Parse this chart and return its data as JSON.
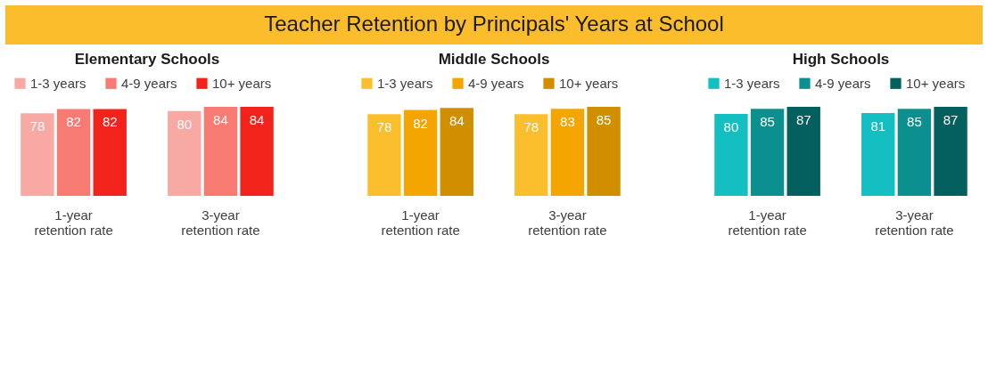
{
  "chart_data": [
    {
      "type": "other",
      "title": "Teacher Retention by Principals' Years at School"
    },
    {
      "type": "bar",
      "title": "Elementary Schools",
      "categories": [
        "1-year retention rate",
        "3-year retention rate"
      ],
      "legend": "top",
      "data_labels": true,
      "series": [
        {
          "name": "1-3 years",
          "color": "#f9a9a4",
          "values": [
            78,
            80
          ]
        },
        {
          "name": "4-9 years",
          "color": "#f77b72",
          "values": [
            82,
            84
          ]
        },
        {
          "name": "10+ years",
          "color": "#f2231b",
          "values": [
            82,
            84
          ]
        }
      ]
    },
    {
      "type": "bar",
      "title": "Middle Schools",
      "categories": [
        "1-year retention rate",
        "3-year retention rate"
      ],
      "legend": "top",
      "data_labels": true,
      "series": [
        {
          "name": "1-3 years",
          "color": "#fbbf2e",
          "values": [
            78,
            78
          ]
        },
        {
          "name": "4-9 years",
          "color": "#f5a500",
          "values": [
            82,
            83
          ]
        },
        {
          "name": "10+ years",
          "color": "#d18f00",
          "values": [
            84,
            85
          ]
        }
      ]
    },
    {
      "type": "bar",
      "title": "High Schools",
      "categories": [
        "1-year retention rate",
        "3-year retention rate"
      ],
      "legend": "top",
      "data_labels": true,
      "series": [
        {
          "name": "1-3 years",
          "color": "#13bfc0",
          "values": [
            80,
            81
          ]
        },
        {
          "name": "4-9 years",
          "color": "#0c8f8f",
          "values": [
            85,
            85
          ]
        },
        {
          "name": "10+ years",
          "color": "#04605e",
          "values": [
            87,
            87
          ]
        }
      ]
    }
  ]
}
